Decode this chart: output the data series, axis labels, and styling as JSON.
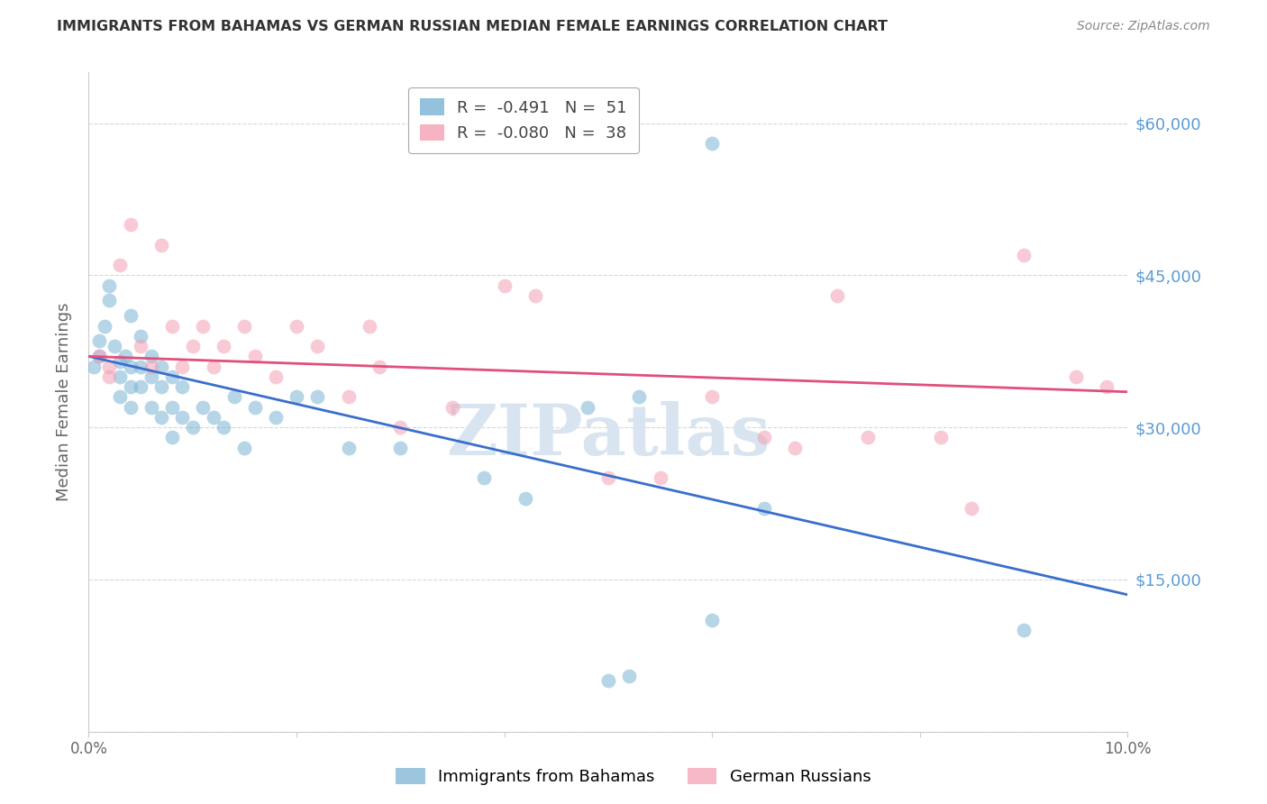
{
  "title": "IMMIGRANTS FROM BAHAMAS VS GERMAN RUSSIAN MEDIAN FEMALE EARNINGS CORRELATION CHART",
  "source": "Source: ZipAtlas.com",
  "ylabel_label": "Median Female Earnings",
  "xlim": [
    0.0,
    0.1
  ],
  "ylim": [
    0,
    65000
  ],
  "yticks": [
    0,
    15000,
    30000,
    45000,
    60000
  ],
  "ytick_labels": [
    "",
    "$15,000",
    "$30,000",
    "$45,000",
    "$60,000"
  ],
  "xticks": [
    0.0,
    0.02,
    0.04,
    0.06,
    0.08,
    0.1
  ],
  "xtick_labels": [
    "0.0%",
    "",
    "",
    "",
    "",
    "10.0%"
  ],
  "watermark": "ZIPatlas",
  "blue_scatter_x": [
    0.0005,
    0.001,
    0.001,
    0.0015,
    0.002,
    0.002,
    0.0025,
    0.003,
    0.003,
    0.003,
    0.0035,
    0.004,
    0.004,
    0.004,
    0.004,
    0.005,
    0.005,
    0.005,
    0.006,
    0.006,
    0.006,
    0.007,
    0.007,
    0.007,
    0.008,
    0.008,
    0.008,
    0.009,
    0.009,
    0.01,
    0.011,
    0.012,
    0.013,
    0.014,
    0.015,
    0.016,
    0.018,
    0.02,
    0.022,
    0.025,
    0.03,
    0.038,
    0.042,
    0.05,
    0.052,
    0.053,
    0.06,
    0.065,
    0.09,
    0.06,
    0.048
  ],
  "blue_scatter_y": [
    36000,
    38500,
    37000,
    40000,
    44000,
    42500,
    38000,
    36500,
    35000,
    33000,
    37000,
    41000,
    36000,
    34000,
    32000,
    39000,
    36000,
    34000,
    37000,
    35000,
    32000,
    36000,
    34000,
    31000,
    35000,
    32000,
    29000,
    34000,
    31000,
    30000,
    32000,
    31000,
    30000,
    33000,
    28000,
    32000,
    31000,
    33000,
    33000,
    28000,
    28000,
    25000,
    23000,
    5000,
    5500,
    33000,
    11000,
    22000,
    10000,
    58000,
    32000
  ],
  "pink_scatter_x": [
    0.001,
    0.002,
    0.002,
    0.003,
    0.004,
    0.005,
    0.006,
    0.007,
    0.008,
    0.009,
    0.01,
    0.011,
    0.012,
    0.013,
    0.015,
    0.016,
    0.018,
    0.02,
    0.022,
    0.025,
    0.027,
    0.028,
    0.03,
    0.035,
    0.04,
    0.043,
    0.05,
    0.055,
    0.06,
    0.065,
    0.068,
    0.072,
    0.075,
    0.082,
    0.085,
    0.09,
    0.095,
    0.098
  ],
  "pink_scatter_y": [
    37000,
    36000,
    35000,
    46000,
    50000,
    38000,
    36000,
    48000,
    40000,
    36000,
    38000,
    40000,
    36000,
    38000,
    40000,
    37000,
    35000,
    40000,
    38000,
    33000,
    40000,
    36000,
    30000,
    32000,
    44000,
    43000,
    25000,
    25000,
    33000,
    29000,
    28000,
    43000,
    29000,
    29000,
    22000,
    47000,
    35000,
    34000
  ],
  "blue_line_x": [
    0.0,
    0.1
  ],
  "blue_line_y": [
    37000,
    13500
  ],
  "pink_line_x": [
    0.0,
    0.1
  ],
  "pink_line_y": [
    37000,
    33500
  ],
  "scatter_alpha": 0.55,
  "scatter_size": 130,
  "blue_color": "#7ab3d4",
  "pink_color": "#f4a0b4",
  "blue_line_color": "#3a6ecc",
  "pink_line_color": "#e0507a",
  "grid_color": "#cccccc",
  "title_color": "#333333",
  "right_tick_color": "#5b9bd5",
  "watermark_color": "#d8e4f0",
  "legend_R_color": "#555555",
  "legend_val_color": "#00aacc",
  "legend_N_color": "#555555"
}
